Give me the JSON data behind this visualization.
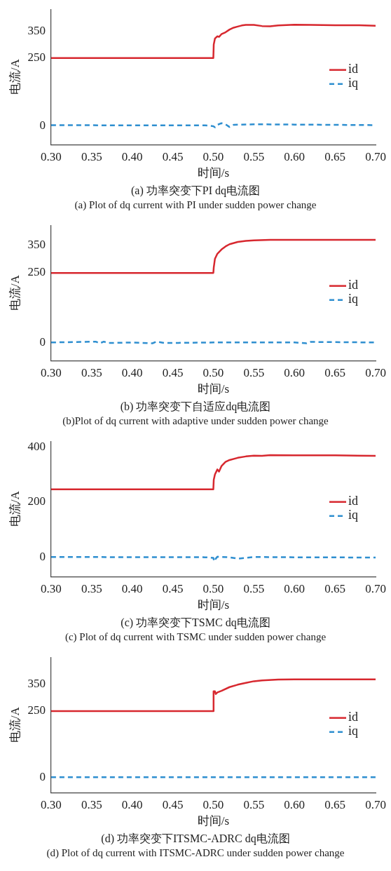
{
  "chart_data": [
    {
      "type": "line",
      "title": "(a) 功率突变下PI dq电流图",
      "subtitle": "(a) Plot of dq current with PI under sudden power change",
      "xlabel": "时间/s",
      "ylabel": "电流/A",
      "xlim": [
        0.3,
        0.7
      ],
      "xticks": [
        {
          "value": 0.3,
          "label": "0.30"
        },
        {
          "value": 0.35,
          "label": "0.35"
        },
        {
          "value": 0.4,
          "label": "0.40"
        },
        {
          "value": 0.45,
          "label": "0.45"
        },
        {
          "value": 0.5,
          "label": "0.50"
        },
        {
          "value": 0.55,
          "label": "0.55"
        },
        {
          "value": 0.6,
          "label": "0.60"
        },
        {
          "value": 0.65,
          "label": "0.65"
        },
        {
          "value": 0.7,
          "label": "0.70"
        }
      ],
      "ylim": [
        -70,
        430
      ],
      "yticks": [
        0,
        250,
        350
      ],
      "grid": false,
      "legend": "right",
      "marker": "none",
      "series": [
        {
          "name": "id",
          "color": "#d7282f",
          "line_style": "solid",
          "x": [
            0.3,
            0.4,
            0.5,
            0.5005,
            0.502,
            0.505,
            0.507,
            0.51,
            0.515,
            0.52,
            0.525,
            0.53,
            0.535,
            0.54,
            0.55,
            0.56,
            0.57,
            0.58,
            0.6,
            0.62,
            0.65,
            0.68,
            0.7
          ],
          "values": [
            250,
            250,
            250,
            300,
            322,
            330,
            328,
            338,
            345,
            355,
            362,
            366,
            370,
            372,
            372,
            368,
            367,
            370,
            373,
            372,
            371,
            371,
            369
          ]
        },
        {
          "name": "iq",
          "color": "#2f8fd0",
          "line_style": "dashed",
          "x": [
            0.3,
            0.4,
            0.49,
            0.5,
            0.502,
            0.505,
            0.51,
            0.515,
            0.52,
            0.525,
            0.55,
            0.6,
            0.65,
            0.7
          ],
          "values": [
            2,
            1,
            1,
            -2,
            -6,
            3,
            9,
            5,
            -5,
            3,
            5,
            4,
            3,
            2
          ]
        }
      ]
    },
    {
      "type": "line",
      "title": "(b) 功率突变下自适应dq电流图",
      "subtitle": "(b)Plot of dq current with adaptive under sudden power change",
      "xlabel": "时间/s",
      "ylabel": "电流/A",
      "xlim": [
        0.3,
        0.7
      ],
      "xticks": [
        {
          "value": 0.3,
          "label": "0.30"
        },
        {
          "value": 0.35,
          "label": "0.35"
        },
        {
          "value": 0.4,
          "label": "0.40"
        },
        {
          "value": 0.45,
          "label": "0.45"
        },
        {
          "value": 0.5,
          "label": "0.50"
        },
        {
          "value": 0.55,
          "label": "0.55"
        },
        {
          "value": 0.6,
          "label": "0.60"
        },
        {
          "value": 0.65,
          "label": "0.65"
        },
        {
          "value": 0.7,
          "label": "0.70"
        }
      ],
      "ylim": [
        -65,
        420
      ],
      "yticks": [
        0,
        250,
        350
      ],
      "grid": false,
      "legend": "right",
      "marker": "none",
      "series": [
        {
          "name": "id",
          "color": "#d7282f",
          "line_style": "solid",
          "x": [
            0.3,
            0.5,
            0.5005,
            0.502,
            0.505,
            0.51,
            0.515,
            0.52,
            0.53,
            0.54,
            0.55,
            0.57,
            0.6,
            0.7
          ],
          "values": [
            249,
            249,
            268,
            300,
            318,
            333,
            344,
            352,
            360,
            364,
            366,
            368,
            368,
            368
          ]
        },
        {
          "name": "iq",
          "color": "#2f8fd0",
          "line_style": "dashed",
          "x": [
            0.3,
            0.355,
            0.36,
            0.365,
            0.37,
            0.4,
            0.425,
            0.43,
            0.44,
            0.5,
            0.6,
            0.615,
            0.62,
            0.7
          ],
          "values": [
            0,
            3,
            -3,
            3,
            -2,
            0,
            -3,
            3,
            -2,
            0,
            0,
            -3,
            2,
            0
          ]
        }
      ]
    },
    {
      "type": "line",
      "title": "(c) 功率突变下TSMC dq电流图",
      "subtitle": "(c) Plot of dq current with TSMC under sudden power change",
      "xlabel": "时间/s",
      "ylabel": "电流/A",
      "xlim": [
        0.3,
        0.7
      ],
      "xticks": [
        {
          "value": 0.3,
          "label": "0.30"
        },
        {
          "value": 0.35,
          "label": "0.35"
        },
        {
          "value": 0.4,
          "label": "0.40"
        },
        {
          "value": 0.45,
          "label": "0.45"
        },
        {
          "value": 0.5,
          "label": "0.50"
        },
        {
          "value": 0.55,
          "label": "0.55"
        },
        {
          "value": 0.6,
          "label": "0.60"
        },
        {
          "value": 0.65,
          "label": "0.65"
        },
        {
          "value": 0.7,
          "label": "0.70"
        }
      ],
      "ylim": [
        -70,
        420
      ],
      "yticks": [
        0,
        200,
        400
      ],
      "grid": false,
      "legend": "right",
      "marker": "none",
      "series": [
        {
          "name": "id",
          "color": "#d7282f",
          "line_style": "solid",
          "x": [
            0.3,
            0.5,
            0.5005,
            0.502,
            0.505,
            0.507,
            0.51,
            0.515,
            0.52,
            0.53,
            0.54,
            0.55,
            0.56,
            0.57,
            0.6,
            0.65,
            0.7
          ],
          "values": [
            246,
            246,
            280,
            300,
            318,
            310,
            330,
            345,
            352,
            360,
            365,
            368,
            367,
            370,
            369,
            369,
            367
          ]
        },
        {
          "name": "iq",
          "color": "#2f8fd0",
          "line_style": "dashed",
          "x": [
            0.3,
            0.49,
            0.5,
            0.501,
            0.503,
            0.505,
            0.52,
            0.53,
            0.54,
            0.55,
            0.6,
            0.7
          ],
          "values": [
            1,
            0,
            -2,
            -15,
            -5,
            2,
            0,
            -5,
            -2,
            1,
            0,
            -1
          ]
        }
      ]
    },
    {
      "type": "line",
      "title": "(d) 功率突变下ITSMC-ADRC dq电流图",
      "subtitle": "(d) Plot of dq current with ITSMC-ADRC under sudden power change",
      "xlabel": "时间/s",
      "ylabel": "电流/A",
      "xlim": [
        0.3,
        0.7
      ],
      "xticks": [
        {
          "value": 0.3,
          "label": "0.30"
        },
        {
          "value": 0.35,
          "label": "0.35"
        },
        {
          "value": 0.4,
          "label": "0.40"
        },
        {
          "value": 0.45,
          "label": "0.45"
        },
        {
          "value": 0.5,
          "label": "0.50"
        },
        {
          "value": 0.55,
          "label": "0.55"
        },
        {
          "value": 0.6,
          "label": "0.60"
        },
        {
          "value": 0.65,
          "label": "0.65"
        },
        {
          "value": 0.7,
          "label": "0.70"
        }
      ],
      "ylim": [
        -58,
        450
      ],
      "yticks": [
        0,
        250,
        350
      ],
      "grid": false,
      "legend": "right",
      "marker": "none",
      "series": [
        {
          "name": "id",
          "color": "#d7282f",
          "line_style": "solid",
          "x": [
            0.3,
            0.5,
            0.5003,
            0.502,
            0.503,
            0.505,
            0.51,
            0.52,
            0.53,
            0.54,
            0.55,
            0.56,
            0.58,
            0.6,
            0.65,
            0.7
          ],
          "values": [
            248,
            248,
            322,
            322,
            312,
            318,
            324,
            338,
            347,
            354,
            360,
            363,
            366,
            367,
            367,
            367
          ]
        },
        {
          "name": "iq",
          "color": "#2f8fd0",
          "line_style": "dashed",
          "x": [
            0.3,
            0.7
          ],
          "values": [
            0,
            0
          ]
        }
      ]
    }
  ]
}
